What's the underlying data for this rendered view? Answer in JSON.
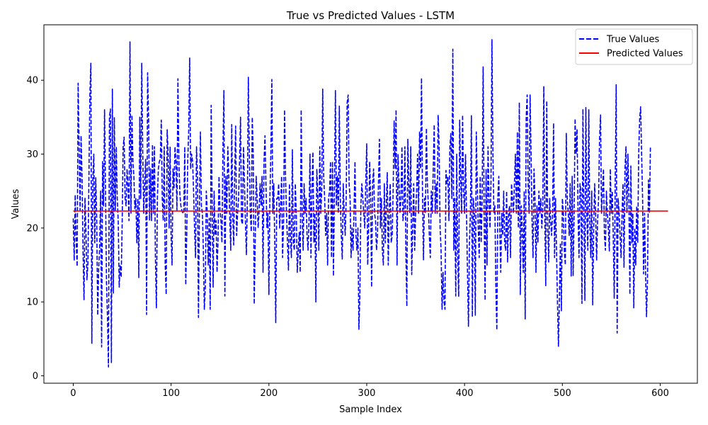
{
  "chart_data": {
    "type": "line",
    "title": "True vs Predicted Values - LSTM",
    "xlabel": "Sample Index",
    "ylabel": "Values",
    "xlim": [
      -30,
      638
    ],
    "ylim": [
      -1,
      47.5
    ],
    "xticks": [
      0,
      100,
      200,
      300,
      400,
      500,
      600
    ],
    "yticks": [
      0,
      10,
      20,
      30,
      40
    ],
    "grid": false,
    "legend_position": "top-right",
    "colors": {
      "true": "#0000ff",
      "predicted": "#ff0000"
    },
    "series": [
      {
        "name": "True Values",
        "style": "dashed",
        "color": "#0000ff",
        "x_start": 0,
        "x_step": 1,
        "values": [
          21.3,
          15.6,
          24.5,
          18.0,
          14.8,
          39.6,
          31.2,
          22.4,
          32.5,
          26.8,
          17.0,
          10.3,
          24.1,
          19.5,
          13.0,
          15.2,
          26.3,
          38.0,
          42.3,
          4.4,
          26.5,
          30.0,
          18.0,
          26.8,
          21.0,
          8.2,
          14.5,
          17.5,
          25.0,
          3.9,
          29.0,
          23.0,
          36.0,
          25.0,
          12.5,
          8.0,
          1.2,
          35.0,
          36.1,
          1.8,
          38.8,
          11.2,
          35.0,
          22.4,
          31.0,
          24.0,
          20.8,
          12.0,
          15.0,
          13.3,
          20.5,
          31.0,
          32.3,
          24.0,
          23.0,
          28.0,
          25.5,
          21.0,
          45.2,
          22.0,
          35.3,
          29.0,
          27.0,
          22.6,
          24.0,
          18.0,
          24.0,
          13.3,
          35.0,
          24.0,
          42.3,
          30.5,
          22.0,
          26.0,
          29.3,
          8.3,
          41.0,
          35.0,
          21.0,
          28.0,
          21.0,
          31.3,
          22.0,
          31.0,
          16.0,
          9.2,
          24.0,
          28.0,
          29.0,
          29.3,
          34.6,
          24.0,
          21.0,
          31.0,
          15.0,
          11.0,
          33.3,
          30.0,
          20.0,
          31.0,
          19.0,
          15.0,
          28.0,
          25.3,
          31.0,
          29.0,
          22.4,
          40.2,
          29.0,
          24.6,
          23.0,
          22.4,
          22.0,
          22.0,
          31.0,
          12.3,
          19.0,
          29.0,
          33.0,
          43.0,
          28.0,
          30.0,
          29.0,
          25.0,
          20.0,
          16.0,
          31.0,
          27.0,
          7.9,
          22.7,
          33.0,
          23.0,
          22.0,
          17.0,
          9.0,
          12.0,
          25.0,
          22.0,
          15.0,
          21.3,
          9.0,
          36.6,
          23.0,
          12.0,
          25.0,
          19.0,
          21.0,
          14.0,
          18.5,
          27.0,
          22.4,
          21.0,
          18.0,
          30.5,
          38.6,
          10.8,
          27.0,
          22.0,
          31.0,
          27.0,
          21.4,
          17.0,
          34.0,
          22.0,
          17.7,
          27.0,
          33.8,
          19.0,
          22.0,
          24.0,
          29.0,
          35.0,
          21.0,
          20.5,
          31.0,
          26.0,
          21.0,
          16.4,
          24.0,
          40.4,
          30.0,
          22.0,
          19.5,
          35.0,
          30.0,
          9.7,
          18.0,
          27.0,
          24.0,
          20.0,
          22.4,
          26.0,
          23.0,
          27.0,
          14.0,
          29.0,
          32.5,
          26.0,
          20.0,
          22.0,
          11.0,
          24.0,
          30.0,
          40.1,
          22.0,
          26.0,
          18.0,
          7.2,
          24.0,
          24.0,
          26.0,
          20.0,
          23.0,
          27.0,
          16.0,
          21.0,
          36.0,
          27.0,
          22.0,
          18.0,
          14.3,
          26.0,
          18.4,
          16.0,
          30.6,
          18.0,
          17.0,
          26.0,
          22.0,
          14.0,
          17.0,
          19.4,
          14.0,
          36.0,
          22.0,
          17.0,
          26.0,
          22.0,
          24.0,
          19.0,
          17.0,
          21.0,
          30.0,
          16.0,
          25.0,
          30.3,
          18.0,
          22.0,
          10.0,
          28.0,
          24.0,
          17.0,
          31.0,
          22.0,
          25.0,
          38.8,
          27.0,
          24.0,
          19.0,
          22.0,
          15.0,
          24.0,
          25.0,
          29.0,
          16.0,
          29.0,
          13.5,
          25.0,
          38.6,
          23.0,
          27.0,
          22.0,
          36.5,
          24.0,
          19.0,
          15.8,
          26.0,
          22.0,
          19.0,
          24.0,
          37.0,
          38.0,
          26.0,
          24.0,
          16.0,
          20.0,
          17.0,
          22.0,
          29.0,
          19.0,
          17.0,
          20.0,
          6.3,
          11.0,
          23.0,
          26.0,
          24.0,
          22.0,
          20.0,
          26.0,
          31.4,
          15.0,
          20.0,
          29.0,
          24.0,
          12.0,
          26.0,
          28.0,
          22.0,
          21.0,
          17.0,
          19.0,
          26.0,
          32.0,
          20.0,
          24.0,
          17.0,
          15.0,
          26.0,
          18.0,
          23.0,
          27.5,
          15.0,
          22.0,
          26.0,
          18.0,
          19.0,
          25.0,
          34.5,
          28.0,
          36.0,
          15.0,
          30.0,
          26.0,
          22.0,
          24.0,
          31.0,
          21.0,
          22.0,
          31.0,
          17.0,
          9.4,
          32.0,
          26.0,
          22.0,
          31.0,
          13.7,
          20.0,
          26.0,
          17.0,
          22.0,
          25.0,
          30.0,
          22.0,
          33.0,
          28.0,
          40.3,
          25.0,
          15.7,
          24.0,
          22.0,
          33.5,
          26.0,
          23.0,
          19.0,
          16.0,
          25.0,
          22.0,
          28.0,
          34.0,
          22.0,
          26.0,
          22.0,
          35.3,
          31.0,
          20.0,
          17.0,
          9.0,
          14.0,
          10.0,
          9.0,
          27.8,
          26.0,
          27.0,
          21.0,
          31.0,
          32.8,
          24.0,
          44.2,
          17.0,
          24.0,
          10.8,
          30.0,
          16.0,
          10.7,
          34.6,
          27.0,
          22.0,
          35.3,
          25.0,
          22.0,
          30.0,
          22.0,
          14.0,
          6.7,
          18.0,
          22.0,
          35.2,
          8.0,
          24.0,
          22.0,
          8.2,
          33.0,
          26.0,
          20.0,
          16.0,
          27.0,
          18.0,
          24.0,
          41.8,
          22.0,
          10.2,
          28.0,
          15.0,
          31.0,
          24.0,
          20.0,
          26.0,
          45.5,
          30.0,
          22.0,
          23.0,
          12.0,
          6.2,
          24.0,
          27.0,
          20.0,
          14.0,
          22.0,
          19.0,
          25.0,
          18.0,
          17.0,
          25.0,
          15.4,
          22.0,
          23.0,
          16.0,
          26.0,
          24.0,
          22.0,
          26.0,
          30.0,
          22.0,
          33.0,
          20.0,
          37.0,
          11.0,
          23.0,
          20.0,
          14.0,
          25.0,
          7.7,
          35.0,
          38.0,
          26.0,
          22.0,
          38.0,
          30.0,
          21.0,
          16.0,
          28.0,
          24.0,
          14.0,
          23.0,
          18.0,
          25.0,
          22.0,
          24.0,
          20.0,
          23.0,
          39.2,
          22.0,
          12.2,
          37.2,
          20.0,
          15.4,
          24.0,
          21.0,
          19.0,
          22.0,
          34.2,
          16.0,
          24.0,
          17.0,
          9.8,
          4.0,
          11.0,
          18.0,
          8.8,
          24.0,
          22.0,
          17.0,
          15.0,
          32.8,
          24.0,
          22.0,
          19.0,
          26.0,
          13.5,
          27.0,
          13.5,
          22.0,
          34.8,
          30.0,
          33.4,
          22.0,
          16.0,
          26.0,
          25.0,
          9.8,
          36.1,
          22.0,
          10.2,
          36.3,
          22.0,
          17.0,
          36.0,
          21.0,
          16.0,
          25.0,
          9.6,
          20.0,
          26.0,
          22.0,
          15.6,
          21.0,
          24.0,
          32.0,
          35.3,
          22.0,
          25.0,
          28.0,
          19.0,
          17.0,
          25.0,
          22.0,
          20.0,
          16.9,
          28.0,
          22.0,
          25.0,
          19.0,
          10.5,
          26.0,
          39.4,
          5.8,
          24.0,
          22.0,
          19.0,
          16.0,
          22.0,
          26.0,
          14.7,
          28.0,
          31.0,
          22.0,
          30.0,
          24.0,
          11.0,
          28.4,
          18.0,
          22.0,
          9.2,
          20.0,
          15.0,
          23.0,
          18.0,
          30.0,
          34.8,
          36.4,
          30.0,
          24.0,
          13.8,
          22.0,
          14.0,
          8.0,
          13.0,
          26.5,
          22.0,
          31.0
        ]
      },
      {
        "name": "Predicted Values",
        "style": "solid",
        "color": "#ff0000",
        "x": [
          0,
          608
        ],
        "values": [
          22.3,
          22.3
        ]
      }
    ]
  }
}
